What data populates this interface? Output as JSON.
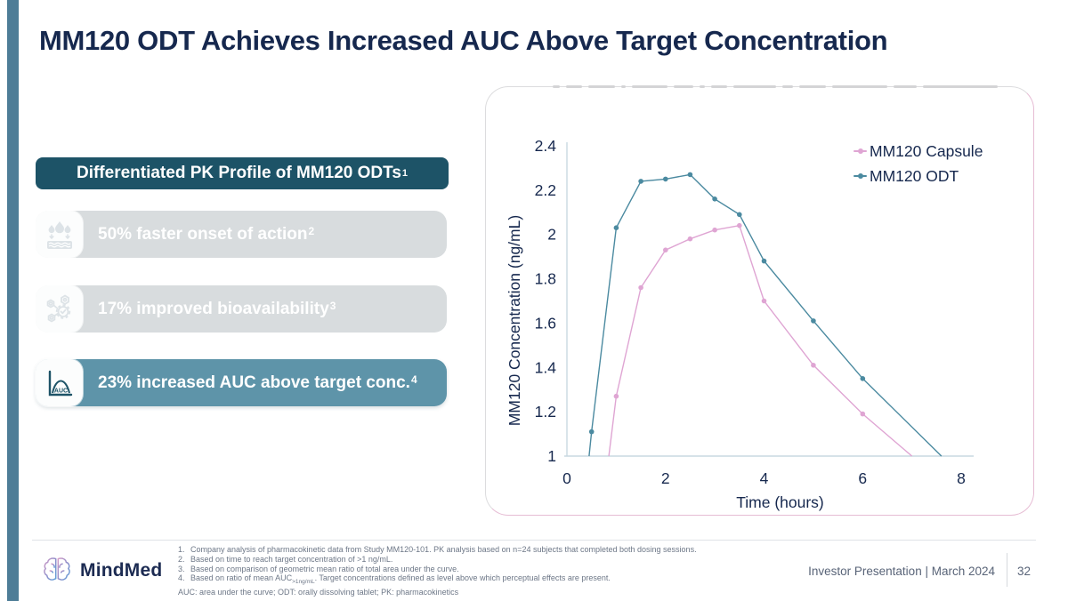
{
  "title": "MM120 ODT Achieves Increased AUC Above Target Concentration",
  "accent_color": "#4e7d97",
  "sidebar": {
    "header": {
      "text": "Differentiated PK Profile of MM120 ODTs",
      "sup": "1"
    },
    "items": [
      {
        "text": "50% faster onset of action",
        "sup": "2",
        "icon": "dissolve-absorption-icon",
        "highlighted": false
      },
      {
        "text": "17% improved bioavailability",
        "sup": "3",
        "icon": "bioavailability-molecule-icon",
        "highlighted": false
      },
      {
        "text": "23% increased AUC above target conc.",
        "sup": "4",
        "icon": "auc-curve-icon",
        "highlighted": true
      }
    ],
    "colors": {
      "header_bg": "#1d5367",
      "item_bg": "#d8dcde",
      "highlight_bg": "#5e94a9"
    }
  },
  "chart_data": {
    "type": "line",
    "title": "",
    "xlabel": "Time (hours)",
    "ylabel": "MM120 Concentration (ng/mL)",
    "xlim": [
      0,
      8
    ],
    "ylim": [
      1,
      2.4
    ],
    "xticks": [
      "0",
      "2",
      "4",
      "6",
      "8"
    ],
    "yticks": [
      "1",
      "1.2",
      "1.4",
      "1.6",
      "1.8",
      "2",
      "2.2",
      "2.4"
    ],
    "grid": false,
    "legend_position": "top-right",
    "series": [
      {
        "name": "MM120 Capsule",
        "color": "#dfa5d3",
        "points": [
          [
            0.85,
            1.0,
            0
          ],
          [
            1,
            1.27,
            1
          ],
          [
            1.5,
            1.76,
            1
          ],
          [
            2,
            1.93,
            1
          ],
          [
            2.5,
            1.98,
            1
          ],
          [
            3,
            2.02,
            1
          ],
          [
            3.5,
            2.04,
            1
          ],
          [
            4,
            1.7,
            1
          ],
          [
            5,
            1.41,
            1
          ],
          [
            6,
            1.19,
            1
          ],
          [
            7.0,
            1.0,
            0
          ]
        ]
      },
      {
        "name": "MM120 ODT",
        "color": "#4b8aa0",
        "points": [
          [
            0.45,
            1.0,
            0
          ],
          [
            0.5,
            1.11,
            1
          ],
          [
            1,
            2.03,
            1
          ],
          [
            1.5,
            2.24,
            1
          ],
          [
            2,
            2.25,
            1
          ],
          [
            2.5,
            2.27,
            1
          ],
          [
            3,
            2.16,
            1
          ],
          [
            3.5,
            2.09,
            1
          ],
          [
            4,
            1.88,
            1
          ],
          [
            5,
            1.61,
            1
          ],
          [
            6,
            1.35,
            1
          ],
          [
            7.6,
            1.0,
            0
          ]
        ]
      }
    ]
  },
  "footer": {
    "logo_text": "MindMed",
    "footnotes": [
      {
        "num": "1.",
        "text": "Company analysis of pharmacokinetic data from Study MM120-101. PK analysis based on n=24 subjects that completed both dosing sessions."
      },
      {
        "num": "2.",
        "text": "Based on time to reach target concentration of >1 ng/mL."
      },
      {
        "num": "3.",
        "text": "Based on comparison of geometric mean ratio of total area under the curve."
      },
      {
        "num": "4.",
        "prefix": "Based on ratio of mean AUC",
        "sub": ">1ng/mL",
        "suffix": ". Target concentrations defined as level above which perceptual effects are present."
      }
    ],
    "abbreviations": "AUC: area under the curve; ODT: orally dissolving tablet; PK: pharmacokinetics",
    "right_text": "Investor Presentation | March 2024",
    "page_number": "32"
  }
}
